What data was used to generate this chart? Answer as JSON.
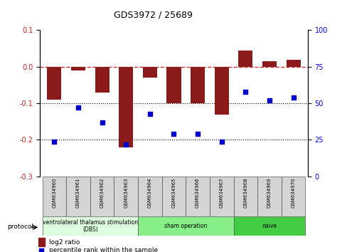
{
  "title": "GDS3972 / 25689",
  "samples": [
    "GSM634960",
    "GSM634961",
    "GSM634962",
    "GSM634963",
    "GSM634964",
    "GSM634965",
    "GSM634966",
    "GSM634967",
    "GSM634968",
    "GSM634969",
    "GSM634970"
  ],
  "log2_ratio": [
    -0.09,
    -0.01,
    -0.07,
    -0.22,
    -0.03,
    -0.1,
    -0.1,
    -0.13,
    0.045,
    0.015,
    0.02
  ],
  "percentile_rank": [
    24,
    47,
    37,
    22,
    43,
    29,
    29,
    24,
    58,
    52,
    54
  ],
  "bar_color": "#8b1a1a",
  "dot_color": "#0000cc",
  "dashed_color": "#cc3333",
  "ylim_left": [
    -0.3,
    0.1
  ],
  "ylim_right": [
    0,
    100
  ],
  "yticks_left": [
    -0.3,
    -0.2,
    -0.1,
    0.0,
    0.1
  ],
  "yticks_right": [
    0,
    25,
    50,
    75,
    100
  ],
  "groups": [
    {
      "label": "ventrolateral thalamus stimulation\n(DBS)",
      "start": 0,
      "end": 3,
      "color": "#ddffdd"
    },
    {
      "label": "sham operation",
      "start": 4,
      "end": 7,
      "color": "#88ee88"
    },
    {
      "label": "naive",
      "start": 8,
      "end": 10,
      "color": "#44cc44"
    }
  ],
  "protocol_label": "protocol",
  "legend_bar": "log2 ratio",
  "legend_dot": "percentile rank within the sample",
  "bg_color": "#ffffff"
}
